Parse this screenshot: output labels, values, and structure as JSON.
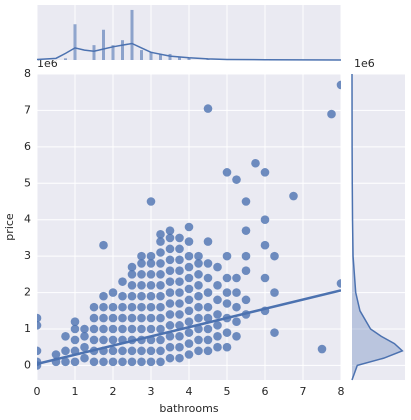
{
  "chart_data": {
    "type": "scatter",
    "x_label": "bathrooms",
    "y_label": "price",
    "y_offset_label": "1e6",
    "color": "#4c72b0",
    "background": "#eaeaf2",
    "grid": true,
    "xlim": [
      0,
      8
    ],
    "ylim": [
      -0.4,
      8
    ],
    "xticks": [
      0,
      1,
      2,
      3,
      4,
      5,
      6,
      7,
      8
    ],
    "yticks": [
      0,
      1,
      2,
      3,
      4,
      5,
      6,
      7,
      8
    ],
    "points": {
      "columns": [
        {
          "x": 0,
          "y": [
            0.0,
            0.1,
            0.4,
            1.1,
            1.3
          ]
        },
        {
          "x": 0.5,
          "y": [
            0.1,
            0.3
          ]
        },
        {
          "x": 0.75,
          "y": [
            0.1,
            0.4,
            0.8
          ]
        },
        {
          "x": 1,
          "y": [
            0.1,
            0.4,
            0.7,
            1.0,
            1.2
          ]
        },
        {
          "x": 1.25,
          "y": [
            0.2,
            0.5,
            0.8,
            1.0
          ]
        },
        {
          "x": 1.5,
          "y": [
            0.1,
            0.4,
            0.7,
            1.0,
            1.3,
            1.6
          ]
        },
        {
          "x": 1.75,
          "y": [
            0.1,
            0.4,
            0.7,
            1.0,
            1.3,
            1.6,
            1.9,
            3.3
          ]
        },
        {
          "x": 2,
          "y": [
            0.1,
            0.4,
            0.7,
            1.0,
            1.3,
            1.6,
            2.0
          ]
        },
        {
          "x": 2.25,
          "y": [
            0.1,
            0.4,
            0.7,
            1.0,
            1.3,
            1.6,
            1.9,
            2.3
          ]
        },
        {
          "x": 2.5,
          "y": [
            0.1,
            0.4,
            0.7,
            1.0,
            1.3,
            1.6,
            1.9,
            2.2,
            2.5,
            2.7
          ]
        },
        {
          "x": 2.75,
          "y": [
            0.1,
            0.4,
            0.7,
            1.0,
            1.3,
            1.6,
            1.9,
            2.2,
            2.5,
            2.8,
            3.0
          ]
        },
        {
          "x": 3,
          "y": [
            0.1,
            0.4,
            0.7,
            1.0,
            1.3,
            1.6,
            1.9,
            2.2,
            2.5,
            2.8,
            3.0,
            4.5
          ]
        },
        {
          "x": 3.25,
          "y": [
            0.1,
            0.4,
            0.7,
            1.0,
            1.3,
            1.6,
            1.9,
            2.2,
            2.5,
            2.8,
            3.1,
            3.4,
            3.6
          ]
        },
        {
          "x": 3.5,
          "y": [
            0.2,
            0.5,
            0.8,
            1.1,
            1.4,
            1.7,
            2.0,
            2.3,
            2.6,
            2.9,
            3.2,
            3.5,
            3.7
          ]
        },
        {
          "x": 3.75,
          "y": [
            0.2,
            0.5,
            0.8,
            1.1,
            1.4,
            1.7,
            2.0,
            2.3,
            2.6,
            2.9,
            3.2,
            3.5
          ]
        },
        {
          "x": 4,
          "y": [
            0.3,
            0.6,
            0.9,
            1.2,
            1.5,
            1.8,
            2.1,
            2.4,
            2.7,
            3.0,
            3.4,
            3.8
          ]
        },
        {
          "x": 4.25,
          "y": [
            0.4,
            0.7,
            1.0,
            1.3,
            1.6,
            1.9,
            2.2,
            2.5,
            2.8,
            3.0
          ]
        },
        {
          "x": 4.5,
          "y": [
            0.4,
            0.7,
            1.0,
            1.3,
            1.6,
            2.0,
            2.4,
            2.8,
            3.4,
            7.05
          ]
        },
        {
          "x": 4.75,
          "y": [
            0.5,
            0.8,
            1.1,
            1.4,
            1.8,
            2.2,
            2.7
          ]
        },
        {
          "x": 5,
          "y": [
            0.5,
            0.9,
            1.3,
            1.7,
            2.0,
            2.4,
            3.0,
            5.3
          ]
        },
        {
          "x": 5.25,
          "y": [
            0.8,
            1.2,
            1.6,
            2.0,
            2.4,
            5.1
          ]
        },
        {
          "x": 5.5,
          "y": [
            1.4,
            1.8,
            2.6,
            3.0,
            3.7,
            4.5
          ]
        },
        {
          "x": 5.75,
          "y": [
            5.55
          ]
        },
        {
          "x": 6,
          "y": [
            1.5,
            2.4,
            3.3,
            4.0,
            5.3
          ]
        },
        {
          "x": 6.25,
          "y": [
            0.9,
            2.0,
            3.0
          ]
        },
        {
          "x": 6.75,
          "y": [
            4.65
          ]
        },
        {
          "x": 7.5,
          "y": [
            0.45
          ]
        },
        {
          "x": 7.75,
          "y": [
            6.9
          ]
        },
        {
          "x": 8,
          "y": [
            2.25,
            7.7
          ]
        }
      ]
    },
    "regression": {
      "x": [
        0,
        8
      ],
      "y": [
        0.04,
        2.06
      ]
    },
    "top_marginal": {
      "ylim": [
        0,
        1
      ],
      "bars": {
        "x": [
          0.75,
          1,
          1.5,
          1.75,
          2,
          2.25,
          2.5,
          2.75,
          3,
          3.25,
          3.5,
          3.75,
          4,
          4.5
        ],
        "values": [
          0.03,
          0.65,
          0.27,
          0.55,
          0.27,
          0.36,
          0.91,
          0.18,
          0.15,
          0.11,
          0.11,
          0.05,
          0.04,
          0.02
        ]
      },
      "kde": {
        "x": [
          0,
          0.5,
          0.75,
          1,
          1.25,
          1.5,
          1.75,
          2,
          2.25,
          2.5,
          2.75,
          3,
          3.5,
          4,
          4.5,
          5,
          6,
          7,
          8
        ],
        "y": [
          0.01,
          0.03,
          0.12,
          0.22,
          0.18,
          0.16,
          0.2,
          0.24,
          0.27,
          0.3,
          0.22,
          0.14,
          0.07,
          0.04,
          0.02,
          0.01,
          0.005,
          0.002,
          0
        ]
      }
    },
    "right_marginal": {
      "xlim": [
        0,
        1
      ],
      "kde": {
        "y": [
          -0.4,
          0,
          0.2,
          0.4,
          0.6,
          0.8,
          1,
          1.5,
          2,
          3,
          4,
          5,
          6,
          8
        ],
        "x": [
          0,
          0.1,
          0.6,
          0.95,
          0.8,
          0.55,
          0.35,
          0.15,
          0.07,
          0.02,
          0.01,
          0.005,
          0.002,
          0
        ]
      }
    }
  }
}
